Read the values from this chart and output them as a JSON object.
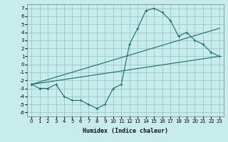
{
  "xlabel": "Humidex (Indice chaleur)",
  "bg_color": "#c8ecec",
  "grid_color": "#8fbfbf",
  "line_color": "#1a6b6b",
  "xlim": [
    -0.5,
    23.5
  ],
  "ylim": [
    -6.5,
    7.5
  ],
  "xticks": [
    0,
    1,
    2,
    3,
    4,
    5,
    6,
    7,
    8,
    9,
    10,
    11,
    12,
    13,
    14,
    15,
    16,
    17,
    18,
    19,
    20,
    21,
    22,
    23
  ],
  "yticks": [
    -6,
    -5,
    -4,
    -3,
    -2,
    -1,
    0,
    1,
    2,
    3,
    4,
    5,
    6,
    7
  ],
  "curve1_x": [
    0,
    1,
    2,
    3,
    4,
    5,
    6,
    7,
    8,
    9,
    10,
    11,
    12,
    13,
    14,
    15,
    16,
    17,
    18,
    19,
    20,
    21,
    22,
    23
  ],
  "curve1_y": [
    -2.5,
    -3,
    -3,
    -2.5,
    -4,
    -4.5,
    -4.5,
    -5,
    -5.5,
    -5,
    -3,
    -2.5,
    2.5,
    4.5,
    6.7,
    7,
    6.5,
    5.5,
    3.5,
    4,
    3,
    2.5,
    1.5,
    1
  ],
  "curve2_x": [
    0,
    23
  ],
  "curve2_y": [
    -2.5,
    4.5
  ],
  "curve3_x": [
    0,
    23
  ],
  "curve3_y": [
    -2.5,
    1.0
  ],
  "tick_fontsize": 5,
  "xlabel_fontsize": 6
}
